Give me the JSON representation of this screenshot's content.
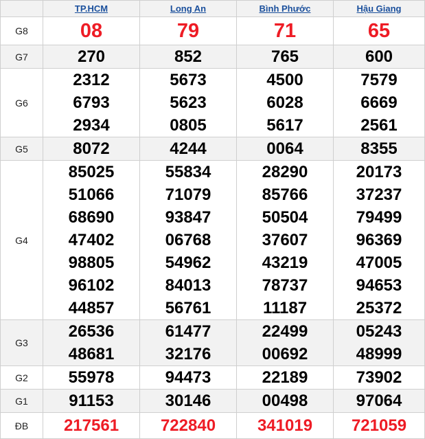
{
  "columns": [
    "TP.HCM",
    "Long An",
    "Bình Phước",
    "Hậu Giang"
  ],
  "colors": {
    "header_link": "#1a4f9c",
    "highlight": "#ee1c25",
    "stripe": "#f2f2f2"
  },
  "prizes": [
    {
      "label": "G8",
      "highlight": true,
      "values": [
        [
          "08"
        ],
        [
          "79"
        ],
        [
          "71"
        ],
        [
          "65"
        ]
      ]
    },
    {
      "label": "G7",
      "values": [
        [
          "270"
        ],
        [
          "852"
        ],
        [
          "765"
        ],
        [
          "600"
        ]
      ]
    },
    {
      "label": "G6",
      "values": [
        [
          "2312",
          "6793",
          "2934"
        ],
        [
          "5673",
          "5623",
          "0805"
        ],
        [
          "4500",
          "6028",
          "5617"
        ],
        [
          "7579",
          "6669",
          "2561"
        ]
      ]
    },
    {
      "label": "G5",
      "values": [
        [
          "8072"
        ],
        [
          "4244"
        ],
        [
          "0064"
        ],
        [
          "8355"
        ]
      ]
    },
    {
      "label": "G4",
      "values": [
        [
          "85025",
          "51066",
          "68690",
          "47402",
          "98805",
          "96102",
          "44857"
        ],
        [
          "55834",
          "71079",
          "93847",
          "06768",
          "54962",
          "84013",
          "56761"
        ],
        [
          "28290",
          "85766",
          "50504",
          "37607",
          "43219",
          "78737",
          "11187"
        ],
        [
          "20173",
          "37237",
          "79499",
          "96369",
          "47005",
          "94653",
          "25372"
        ]
      ]
    },
    {
      "label": "G3",
      "values": [
        [
          "26536",
          "48681"
        ],
        [
          "61477",
          "32176"
        ],
        [
          "22499",
          "00692"
        ],
        [
          "05243",
          "48999"
        ]
      ]
    },
    {
      "label": "G2",
      "values": [
        [
          "55978"
        ],
        [
          "94473"
        ],
        [
          "22189"
        ],
        [
          "73902"
        ]
      ]
    },
    {
      "label": "G1",
      "values": [
        [
          "91153"
        ],
        [
          "30146"
        ],
        [
          "00498"
        ],
        [
          "97064"
        ]
      ]
    },
    {
      "label": "ĐB",
      "highlight": true,
      "values": [
        [
          "217561"
        ],
        [
          "722840"
        ],
        [
          "341019"
        ],
        [
          "721059"
        ]
      ]
    }
  ]
}
